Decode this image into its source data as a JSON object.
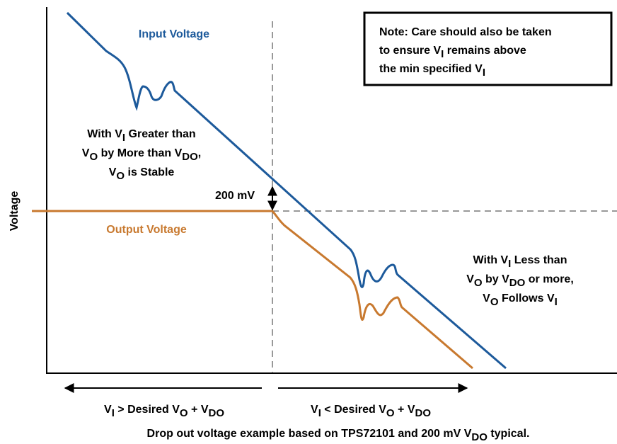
{
  "labels": {
    "y_axis": "Voltage",
    "input": "Input Voltage",
    "output": "Output Voltage",
    "delta": "200 mV",
    "note": [
      [
        "Note: Care should also be taken"
      ],
      [
        "to ensure V",
        "I",
        " remains above"
      ],
      [
        "the min specified V",
        "I"
      ]
    ],
    "left_region": [
      [
        "With V",
        "I",
        " Greater than"
      ],
      [
        "V",
        "O",
        " by More than V",
        "DO",
        ","
      ],
      [
        "V",
        "O",
        " is Stable"
      ]
    ],
    "right_region": [
      [
        "With V",
        "I",
        " Less than"
      ],
      [
        "V",
        "O",
        " by V",
        "DO",
        " or more,"
      ],
      [
        "V",
        "O",
        " Follows V",
        "I"
      ]
    ],
    "left_condition": [
      [
        "V",
        "I",
        " > Desired V",
        "O",
        " + V",
        "DO"
      ]
    ],
    "right_condition": [
      [
        "V",
        "I",
        " < Desired V",
        "O",
        " + V",
        "DO"
      ]
    ],
    "caption": [
      [
        "Drop out voltage example based on TPS72101 and 200 mV V",
        "DO",
        " typical."
      ]
    ]
  }
}
